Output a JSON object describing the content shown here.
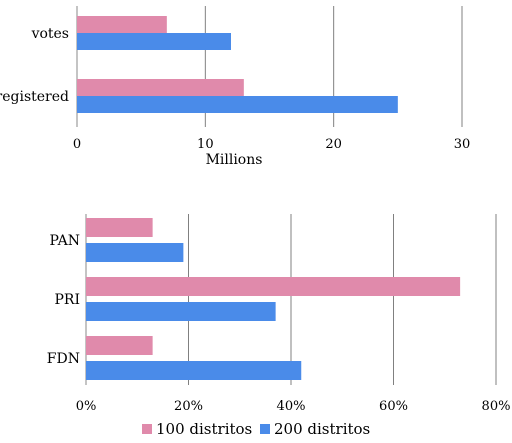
{
  "colors": {
    "series1": "#e08aab",
    "series2": "#4a8be9",
    "grid": "#808080"
  },
  "legend": [
    {
      "label": "100 distritos",
      "color": "#e08aab"
    },
    {
      "label": "200 distritos",
      "color": "#4a8be9"
    }
  ],
  "chart_data": [
    {
      "type": "bar",
      "orientation": "horizontal",
      "categories": [
        "votes",
        "registered"
      ],
      "series": [
        {
          "name": "100 distritos",
          "values": [
            7,
            13
          ]
        },
        {
          "name": "200 distritos",
          "values": [
            12,
            25
          ]
        }
      ],
      "xlim": [
        0,
        30
      ],
      "xticks": [
        "0",
        "10",
        "20",
        "30"
      ],
      "xlabel": "Millions",
      "grid": true
    },
    {
      "type": "bar",
      "orientation": "horizontal",
      "categories": [
        "PAN",
        "PRI",
        "FDN"
      ],
      "series": [
        {
          "name": "100 distritos",
          "values": [
            13,
            73,
            13
          ]
        },
        {
          "name": "200 distritos",
          "values": [
            19,
            37,
            42
          ]
        }
      ],
      "xlim": [
        0,
        80
      ],
      "xticks": [
        "0%",
        "20%",
        "40%",
        "60%",
        "80%"
      ],
      "xlabel": "",
      "grid": true,
      "legend_position": "bottom"
    }
  ]
}
